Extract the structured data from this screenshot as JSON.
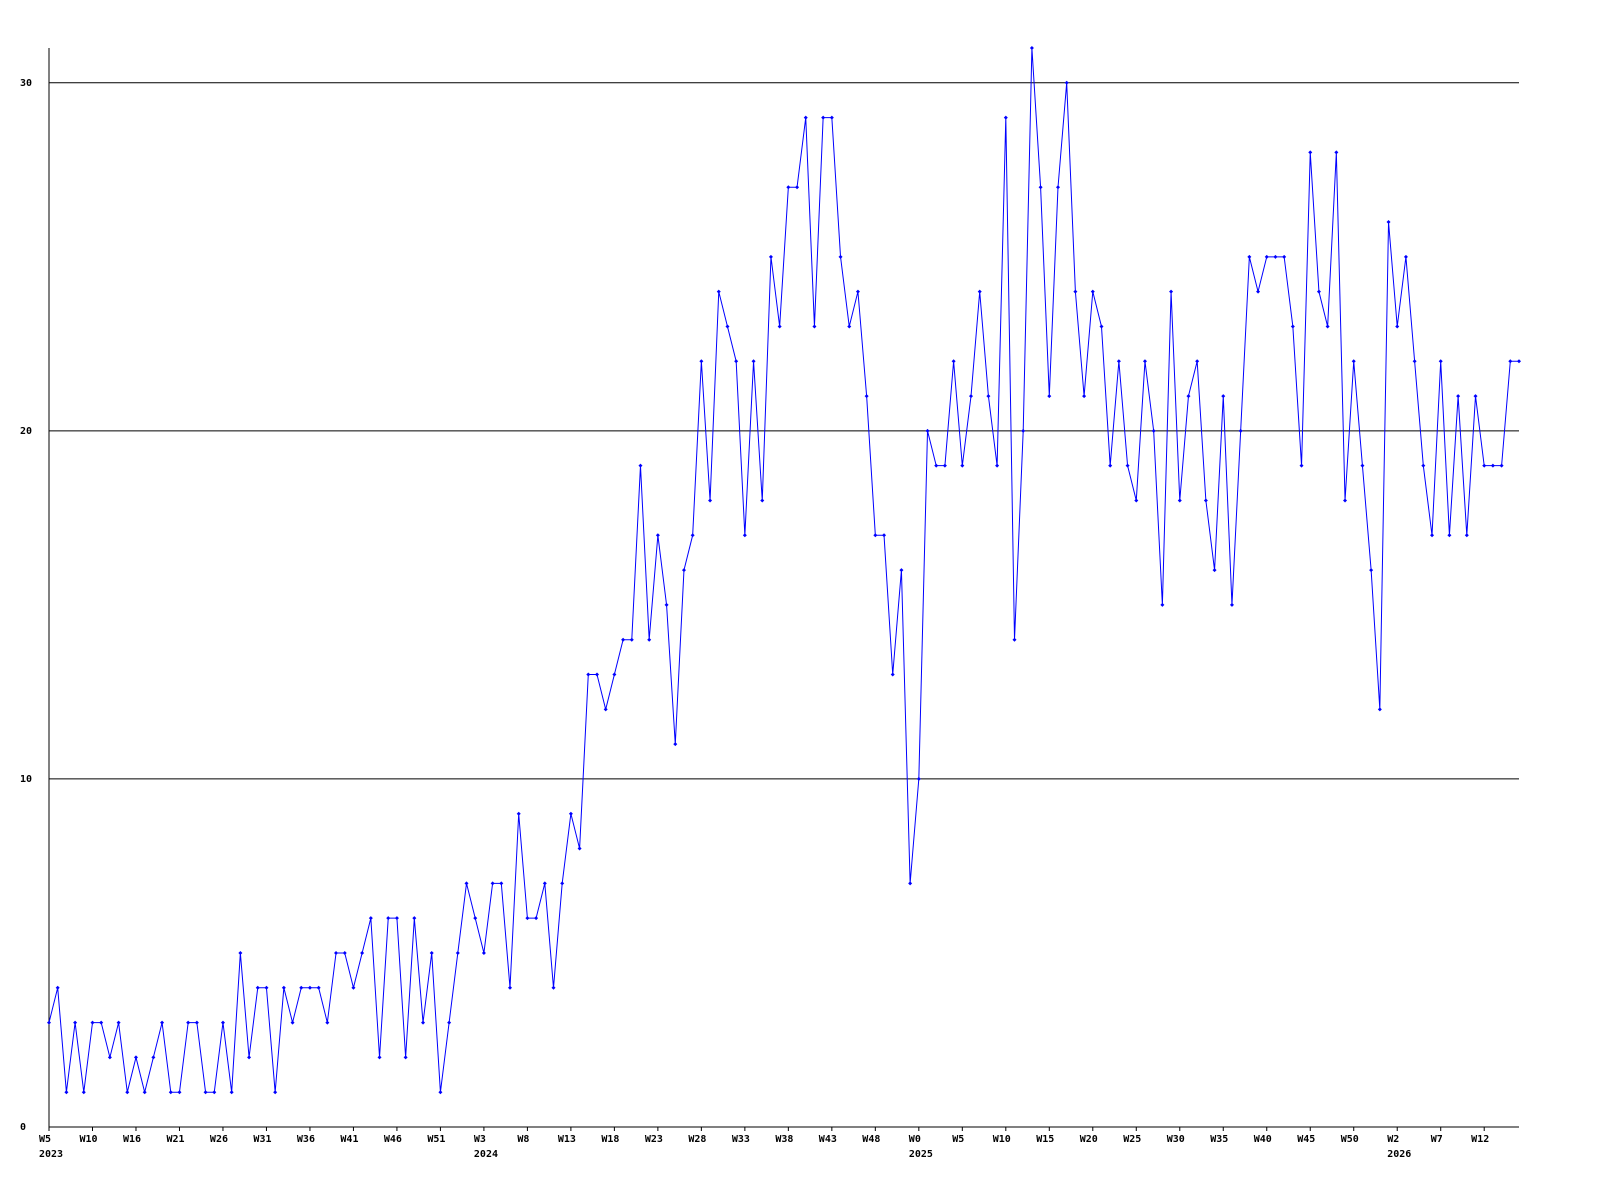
{
  "chart_data": {
    "type": "line",
    "categories": [
      "W5",
      null,
      null,
      null,
      null,
      "W10",
      null,
      null,
      null,
      null,
      "W16",
      null,
      null,
      null,
      null,
      "W21",
      null,
      null,
      null,
      null,
      "W26",
      null,
      null,
      null,
      null,
      "W31",
      null,
      null,
      null,
      null,
      "W36",
      null,
      null,
      null,
      null,
      "W41",
      null,
      null,
      null,
      null,
      "W46",
      null,
      null,
      null,
      null,
      "W51",
      null,
      null,
      null,
      null,
      "W3",
      null,
      null,
      null,
      null,
      "W8",
      null,
      null,
      null,
      null,
      "W13",
      null,
      null,
      null,
      null,
      "W18",
      null,
      null,
      null,
      null,
      "W23",
      null,
      null,
      null,
      null,
      "W28",
      null,
      null,
      null,
      null,
      "W33",
      null,
      null,
      null,
      null,
      "W38",
      null,
      null,
      null,
      null,
      "W43",
      null,
      null,
      null,
      null,
      "W48",
      null,
      null,
      null,
      null,
      "W0",
      null,
      null,
      null,
      null,
      "W5",
      null,
      null,
      null,
      null,
      "W10",
      null,
      null,
      null,
      null,
      "W15",
      null,
      null,
      null,
      null,
      "W20",
      null,
      null,
      null,
      null,
      "W25",
      null,
      null,
      null,
      null,
      "W30",
      null,
      null,
      null,
      null,
      "W35",
      null,
      null,
      null,
      null,
      "W40",
      null,
      null,
      null,
      null,
      "W45",
      null,
      null,
      null,
      null,
      "W50",
      null,
      null,
      null,
      null,
      "W2",
      null,
      null,
      null,
      null,
      "W7",
      null,
      null,
      null,
      null,
      "W12",
      null,
      null,
      null,
      null
    ],
    "year_labels": [
      {
        "label": "2023",
        "category": 0
      },
      {
        "label": "2024",
        "category": 50
      },
      {
        "label": "2025",
        "category": 100
      },
      {
        "label": "2026",
        "category": 155
      }
    ],
    "values": [
      3,
      4,
      1,
      3,
      1,
      3,
      3,
      2,
      3,
      1,
      2,
      1,
      2,
      3,
      1,
      1,
      3,
      3,
      1,
      1,
      3,
      1,
      5,
      2,
      4,
      4,
      1,
      4,
      3,
      4,
      4,
      4,
      3,
      5,
      5,
      4,
      5,
      6,
      2,
      6,
      6,
      2,
      6,
      3,
      5,
      1,
      3,
      5,
      7,
      6,
      5,
      7,
      7,
      4,
      9,
      6,
      6,
      7,
      4,
      7,
      9,
      8,
      13,
      13,
      12,
      13,
      14,
      14,
      19,
      14,
      17,
      15,
      11,
      16,
      17,
      22,
      18,
      24,
      23,
      22,
      17,
      22,
      18,
      25,
      23,
      27,
      27,
      29,
      23,
      29,
      29,
      25,
      23,
      24,
      21,
      17,
      17,
      13,
      16,
      7,
      10,
      20,
      19,
      19,
      22,
      19,
      21,
      24,
      21,
      19,
      29,
      14,
      20,
      31,
      27,
      21,
      27,
      30,
      24,
      21,
      24,
      23,
      19,
      22,
      19,
      18,
      22,
      20,
      15,
      24,
      18,
      21,
      22,
      18,
      16,
      21,
      15,
      20,
      25,
      24,
      25,
      25,
      25,
      23,
      19,
      28,
      24,
      23,
      28,
      18,
      22,
      19,
      16,
      12,
      26,
      23,
      25,
      22,
      19,
      17,
      22,
      17,
      21,
      17,
      21,
      19,
      19,
      19,
      22,
      22
    ],
    "color": "#0000ff",
    "ylim": [
      0,
      31
    ],
    "yticks": [
      0,
      10,
      20,
      30
    ],
    "grid": true
  }
}
